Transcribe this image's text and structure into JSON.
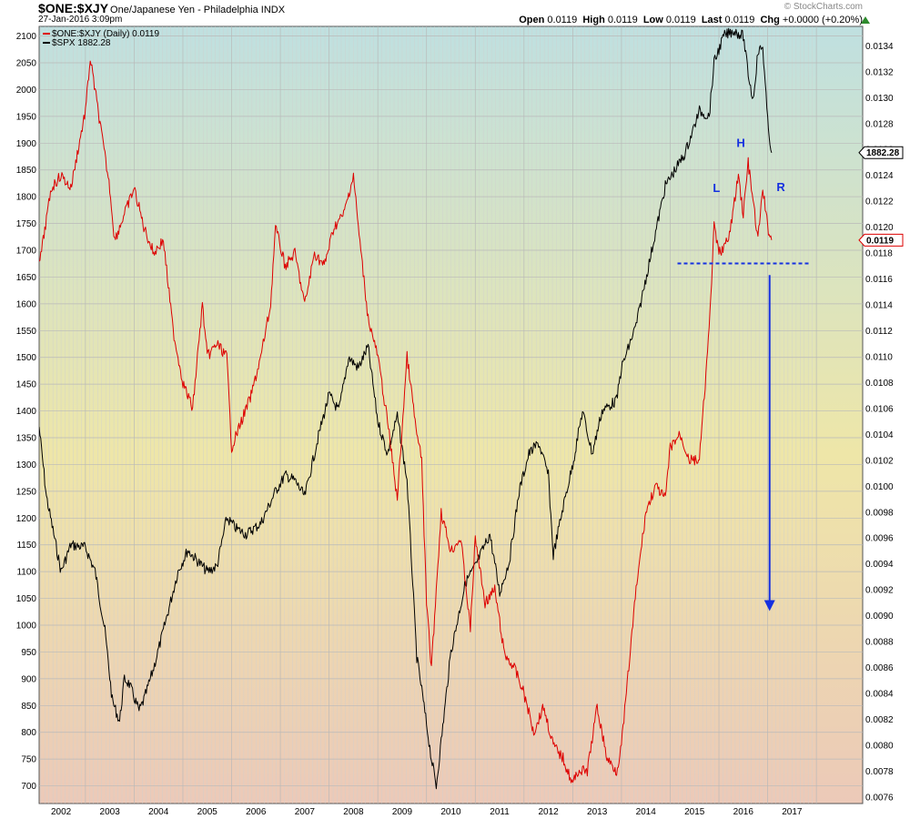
{
  "header": {
    "symbol": "$ONE:$XJY",
    "description": "One/Japanese Yen - Philadelphia INDX",
    "datetime": "27-Jan-2016 3:09pm",
    "brand": "© StockCharts.com",
    "open_label": "Open",
    "open": "0.0119",
    "high_label": "High",
    "high": "0.0119",
    "low_label": "Low",
    "low": "0.0119",
    "last_label": "Last",
    "last": "0.0119",
    "chg_label": "Chg",
    "chg": "+0.0000 (+0.20%)",
    "change_icon": "up-triangle-icon"
  },
  "legend": {
    "series1": "$ONE:$XJY (Daily) 0.0119",
    "series2": "$SPX 1882.28"
  },
  "colors": {
    "xjy": "#dd0000",
    "spx": "#000000",
    "annotation": "#1530e0",
    "bg_top": "#bfe0e0",
    "bg_mid": "#eee6a8",
    "bg_bottom": "#ecc9b8"
  },
  "chart_data": {
    "type": "line",
    "x_ticks": [
      "2002",
      "2003",
      "2004",
      "2005",
      "2006",
      "2007",
      "2008",
      "2009",
      "2010",
      "2011",
      "2012",
      "2013",
      "2014",
      "2015",
      "2016",
      "2017"
    ],
    "xlim": [
      2001.05,
      2017.95
    ],
    "left_axis": {
      "ticks": [
        "700",
        "750",
        "800",
        "850",
        "900",
        "950",
        "1000",
        "1050",
        "1100",
        "1150",
        "1200",
        "1250",
        "1300",
        "1350",
        "1400",
        "1450",
        "1500",
        "1550",
        "1600",
        "1650",
        "1700",
        "1750",
        "1800",
        "1850",
        "1900",
        "1950",
        "2000",
        "2050",
        "2100"
      ],
      "ylim": [
        667,
        2118
      ]
    },
    "right_axis": {
      "ticks": [
        "0.0076",
        "0.0078",
        "0.0080",
        "0.0082",
        "0.0084",
        "0.0086",
        "0.0088",
        "0.0090",
        "0.0092",
        "0.0094",
        "0.0096",
        "0.0098",
        "0.0100",
        "0.0102",
        "0.0104",
        "0.0106",
        "0.0108",
        "0.0110",
        "0.0112",
        "0.0114",
        "0.0116",
        "0.0118",
        "0.0120",
        "0.0122",
        "0.0124",
        "0.0126",
        "0.0128",
        "0.0130",
        "0.0132",
        "0.0134"
      ],
      "ylim": [
        0.00755,
        0.01355
      ]
    },
    "grid": true,
    "series": [
      {
        "name": "$ONE:$XJY",
        "axis": "right",
        "x": [
          2001.05,
          2001.3,
          2001.5,
          2001.7,
          2002.0,
          2002.1,
          2002.3,
          2002.5,
          2002.6,
          2002.8,
          2003.0,
          2003.2,
          2003.4,
          2003.6,
          2003.8,
          2004.0,
          2004.2,
          2004.4,
          2004.5,
          2004.7,
          2004.9,
          2005.0,
          2005.2,
          2005.4,
          2005.6,
          2005.8,
          2005.9,
          2006.1,
          2006.3,
          2006.5,
          2006.7,
          2006.9,
          2007.1,
          2007.3,
          2007.5,
          2007.6,
          2007.8,
          2008.0,
          2008.2,
          2008.4,
          2008.6,
          2008.8,
          2008.9,
          2009.0,
          2009.1,
          2009.3,
          2009.5,
          2009.7,
          2009.9,
          2010.0,
          2010.2,
          2010.4,
          2010.6,
          2010.8,
          2011.0,
          2011.2,
          2011.4,
          2011.6,
          2011.8,
          2012.0,
          2012.1,
          2012.3,
          2012.5,
          2012.7,
          2012.9,
          2013.0,
          2013.1,
          2013.3,
          2013.5,
          2013.7,
          2013.9,
          2014.0,
          2014.2,
          2014.4,
          2014.6,
          2014.7,
          2014.8,
          2014.9,
          2015.0,
          2015.2,
          2015.4,
          2015.5,
          2015.6,
          2015.8,
          2015.9,
          2016.0,
          2016.08
        ],
        "values": [
          0.0117,
          0.0123,
          0.0124,
          0.0123,
          0.0129,
          0.0133,
          0.0128,
          0.0123,
          0.0119,
          0.0121,
          0.0123,
          0.012,
          0.0118,
          0.0119,
          0.0112,
          0.0108,
          0.0106,
          0.0114,
          0.011,
          0.0111,
          0.011,
          0.0103,
          0.0105,
          0.0107,
          0.011,
          0.0114,
          0.012,
          0.0117,
          0.0118,
          0.0114,
          0.0118,
          0.0117,
          0.012,
          0.0121,
          0.0124,
          0.012,
          0.0113,
          0.011,
          0.0105,
          0.0099,
          0.011,
          0.0104,
          0.0102,
          0.0091,
          0.0086,
          0.0098,
          0.0095,
          0.0096,
          0.0089,
          0.0096,
          0.0091,
          0.0092,
          0.0087,
          0.0086,
          0.0084,
          0.0081,
          0.0083,
          0.008,
          0.0079,
          0.0077,
          0.0078,
          0.0078,
          0.0083,
          0.0079,
          0.0078,
          0.008,
          0.0084,
          0.0092,
          0.0098,
          0.01,
          0.0099,
          0.0103,
          0.0104,
          0.0102,
          0.0102,
          0.0107,
          0.0112,
          0.012,
          0.0118,
          0.0119,
          0.0124,
          0.0121,
          0.0125,
          0.0119,
          0.0123,
          0.012,
          0.0119
        ]
      },
      {
        "name": "$SPX",
        "axis": "left",
        "x": [
          2001.05,
          2001.2,
          2001.5,
          2001.7,
          2002.0,
          2002.2,
          2002.4,
          2002.55,
          2002.7,
          2002.8,
          2002.9,
          2003.1,
          2003.2,
          2003.4,
          2003.6,
          2003.9,
          2004.1,
          2004.3,
          2004.5,
          2004.7,
          2004.9,
          2005.1,
          2005.3,
          2005.6,
          2005.9,
          2006.1,
          2006.3,
          2006.5,
          2006.8,
          2007.0,
          2007.2,
          2007.4,
          2007.6,
          2007.8,
          2008.0,
          2008.2,
          2008.4,
          2008.6,
          2008.8,
          2008.9,
          2009.1,
          2009.2,
          2009.5,
          2009.8,
          2010.0,
          2010.3,
          2010.5,
          2010.7,
          2010.9,
          2011.1,
          2011.3,
          2011.5,
          2011.6,
          2011.8,
          2012.0,
          2012.2,
          2012.4,
          2012.6,
          2012.9,
          2013.0,
          2013.3,
          2013.6,
          2013.9,
          2014.1,
          2014.3,
          2014.6,
          2014.8,
          2014.9,
          2015.1,
          2015.3,
          2015.5,
          2015.6,
          2015.7,
          2015.8,
          2015.9,
          2016.0,
          2016.08
        ],
        "values": [
          1370,
          1240,
          1100,
          1150,
          1145,
          1100,
          990,
          860,
          820,
          900,
          890,
          840,
          860,
          920,
          990,
          1100,
          1140,
          1120,
          1100,
          1110,
          1200,
          1180,
          1170,
          1190,
          1250,
          1280,
          1270,
          1240,
          1360,
          1430,
          1400,
          1500,
          1480,
          1520,
          1380,
          1320,
          1390,
          1270,
          940,
          880,
          750,
          700,
          950,
          1080,
          1110,
          1170,
          1060,
          1120,
          1250,
          1320,
          1340,
          1280,
          1130,
          1220,
          1300,
          1400,
          1320,
          1400,
          1420,
          1480,
          1560,
          1690,
          1820,
          1850,
          1880,
          1960,
          1950,
          2050,
          2100,
          2110,
          2100,
          2030,
          1980,
          2070,
          2080,
          1940,
          1882
        ]
      }
    ]
  },
  "annotations": {
    "L": "L",
    "H": "H",
    "R": "R",
    "neckline_value": 0.01172,
    "neckline_x": [
      2014.15,
      2016.85
    ],
    "arrow_x": 2016.04,
    "arrow_from": 0.01163,
    "arrow_to": 0.00905
  },
  "last_value_tags": {
    "spx": "1882.28",
    "xjy": "0.0119"
  }
}
